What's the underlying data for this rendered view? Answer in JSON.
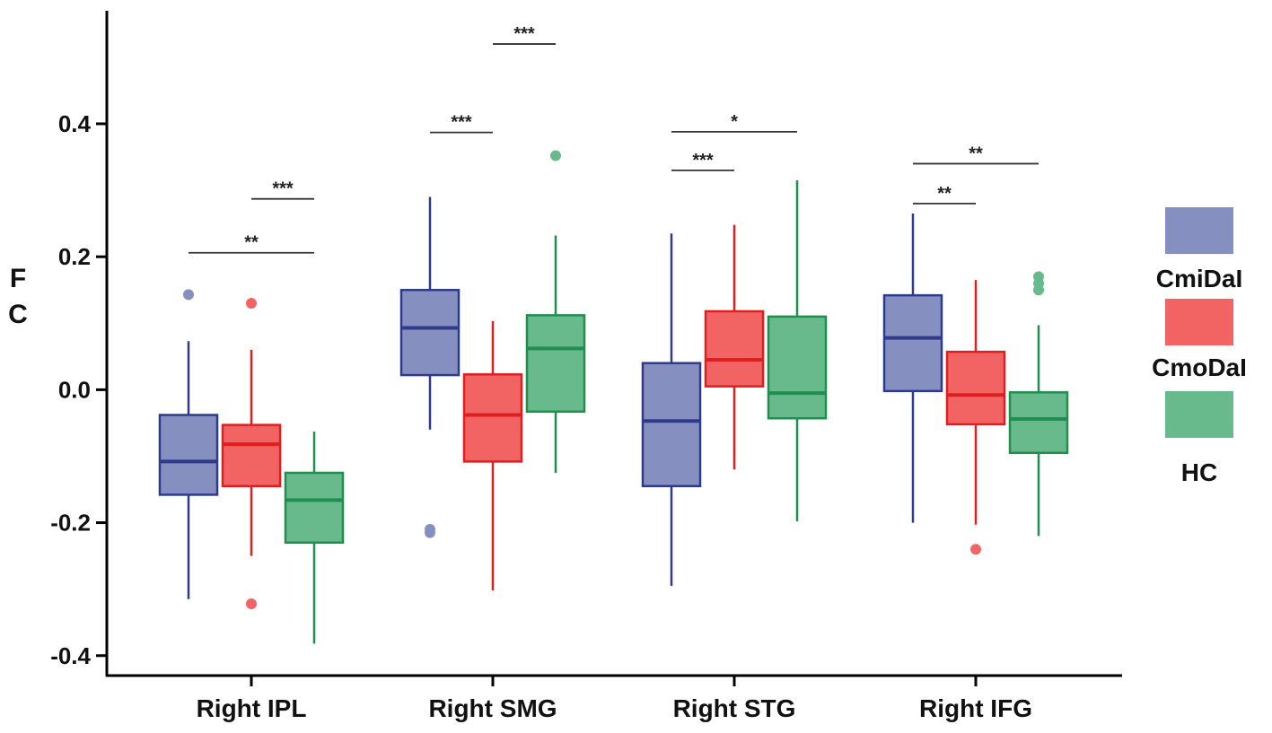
{
  "chart_data": {
    "type": "box",
    "title": "",
    "xlabel": "",
    "ylabel": "FC",
    "ylabel_lines": [
      "F",
      "C"
    ],
    "ylim": [
      -0.43,
      0.57
    ],
    "yticks": [
      0.4,
      0.2,
      0.0,
      -0.2,
      -0.4
    ],
    "ytick_labels": [
      "0.4",
      "0.2",
      "0.0",
      "-0.2",
      "-0.4"
    ],
    "categories": [
      "Right IPL",
      "Right SMG",
      "Right STG",
      "Right IFG"
    ],
    "series": [
      {
        "name": "CmiDaI",
        "fill": "#8690c0",
        "stroke": "#2e3a8c",
        "boxes": [
          {
            "min": -0.315,
            "q1": -0.158,
            "median": -0.108,
            "q3": -0.038,
            "max": 0.073,
            "outliers": [
              0.143
            ]
          },
          {
            "min": -0.06,
            "q1": 0.022,
            "median": 0.093,
            "q3": 0.15,
            "max": 0.29,
            "outliers": [
              -0.21,
              -0.215
            ]
          },
          {
            "min": -0.295,
            "q1": -0.145,
            "median": -0.047,
            "q3": 0.04,
            "max": 0.235,
            "outliers": []
          },
          {
            "min": -0.2,
            "q1": -0.002,
            "median": 0.078,
            "q3": 0.142,
            "max": 0.265,
            "outliers": []
          }
        ]
      },
      {
        "name": "CmoDaI",
        "fill": "#f26464",
        "stroke": "#e01e1e",
        "boxes": [
          {
            "min": -0.25,
            "q1": -0.145,
            "median": -0.082,
            "q3": -0.053,
            "max": 0.06,
            "outliers": [
              0.13,
              -0.322
            ]
          },
          {
            "min": -0.302,
            "q1": -0.108,
            "median": -0.038,
            "q3": 0.023,
            "max": 0.103,
            "outliers": []
          },
          {
            "min": -0.12,
            "q1": 0.005,
            "median": 0.045,
            "q3": 0.118,
            "max": 0.248,
            "outliers": []
          },
          {
            "min": -0.203,
            "q1": -0.052,
            "median": -0.008,
            "q3": 0.057,
            "max": 0.165,
            "outliers": [
              -0.24
            ]
          }
        ]
      },
      {
        "name": "HC",
        "fill": "#68b98c",
        "stroke": "#1f8f4e",
        "boxes": [
          {
            "min": -0.382,
            "q1": -0.23,
            "median": -0.166,
            "q3": -0.125,
            "max": -0.063,
            "outliers": []
          },
          {
            "min": -0.125,
            "q1": -0.033,
            "median": 0.062,
            "q3": 0.112,
            "max": 0.232,
            "outliers": [
              0.352
            ]
          },
          {
            "min": -0.198,
            "q1": -0.043,
            "median": -0.005,
            "q3": 0.11,
            "max": 0.315,
            "outliers": []
          },
          {
            "min": -0.22,
            "q1": -0.095,
            "median": -0.044,
            "q3": -0.004,
            "max": 0.097,
            "outliers": [
              0.17,
              0.16,
              0.15
            ]
          }
        ]
      }
    ],
    "significance": [
      {
        "category": 0,
        "from": 1,
        "to": 2,
        "y": 0.287,
        "label": "***"
      },
      {
        "category": 0,
        "from": 0,
        "to": 2,
        "y": 0.206,
        "label": "**"
      },
      {
        "category": 1,
        "from": 0,
        "to": 1,
        "y": 0.387,
        "label": "***"
      },
      {
        "category": 1,
        "from": 1,
        "to": 2,
        "y": 0.52,
        "label": "***"
      },
      {
        "category": 2,
        "from": 0,
        "to": 1,
        "y": 0.33,
        "label": "***"
      },
      {
        "category": 2,
        "from": 0,
        "to": 2,
        "y": 0.388,
        "label": "*"
      },
      {
        "category": 3,
        "from": 0,
        "to": 1,
        "y": 0.28,
        "label": "**"
      },
      {
        "category": 3,
        "from": 0,
        "to": 2,
        "y": 0.34,
        "label": "**"
      }
    ],
    "legend": {
      "position": "right",
      "entries": [
        "CmiDaI",
        "CmoDaI",
        "HC"
      ]
    }
  }
}
